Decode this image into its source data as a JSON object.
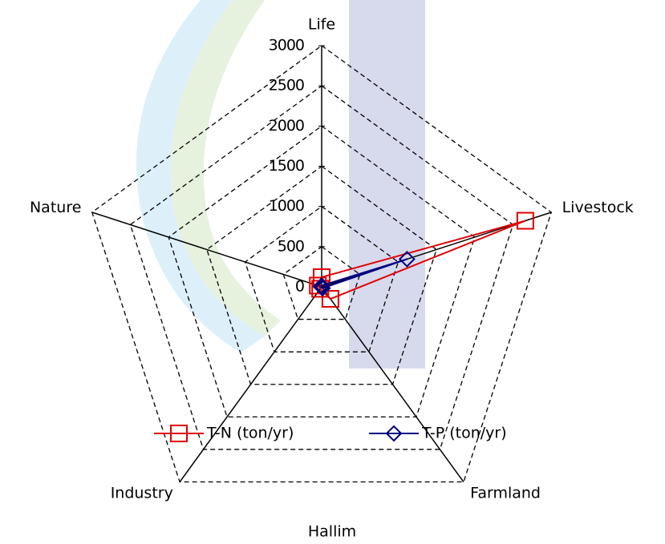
{
  "chart_data": {
    "type": "radar",
    "title": "Hallim",
    "categories": [
      "Life",
      "Livestock",
      "Farmland",
      "Industry",
      "Nature"
    ],
    "series": [
      {
        "name": "T-N (ton/yr)",
        "color": "#e00000",
        "marker": "square",
        "values": [
          120,
          2660,
          185,
          30,
          50
        ]
      },
      {
        "name": "T-P (ton/yr)",
        "color": "#000080",
        "marker": "diamond",
        "values": [
          15,
          1115,
          20,
          5,
          10
        ]
      }
    ],
    "ylim": [
      0,
      3000
    ],
    "yticks": [
      0,
      500,
      1000,
      1500,
      2000,
      2500,
      3000
    ],
    "grid": true
  }
}
